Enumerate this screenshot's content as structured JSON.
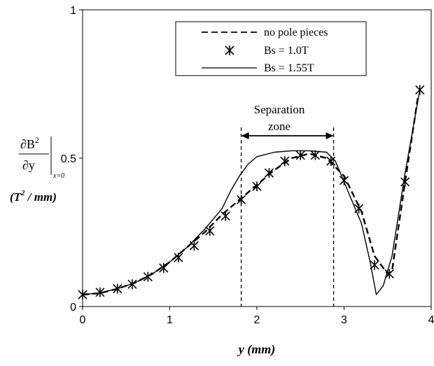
{
  "chart_data": {
    "type": "line",
    "title": "",
    "xlabel": "y (mm)",
    "ylabel": {
      "numerator": "∂B",
      "numerator_exp": "2",
      "denominator": "∂y",
      "subscript": "x=0",
      "unit_prefix": "(T",
      "unit_exp": "2",
      "unit_suffix": " / mm)"
    },
    "xlim": [
      0,
      4
    ],
    "ylim": [
      0,
      1
    ],
    "x_ticks": [
      0,
      1,
      2,
      3,
      4
    ],
    "y_ticks": [
      0,
      0.5,
      1
    ],
    "grid": false,
    "legend_position": "top-center",
    "legend": {
      "no_pole": "no pole pieces",
      "bs1": "Bs = 1.0T",
      "bs155": "Bs = 1.55T"
    },
    "annotation": {
      "line1": "Separation",
      "line2": "zone",
      "x_start": 1.82,
      "x_end": 2.88
    },
    "series": [
      {
        "name": "no pole pieces",
        "style": "dashed",
        "x": [
          0,
          0.2,
          0.4,
          0.6,
          0.8,
          1.0,
          1.2,
          1.4,
          1.6,
          1.8,
          2.0,
          2.2,
          2.4,
          2.6,
          2.8,
          3.0,
          3.2,
          3.35,
          3.5,
          3.55,
          3.7,
          3.85
        ],
        "y": [
          0.04,
          0.045,
          0.06,
          0.08,
          0.11,
          0.15,
          0.2,
          0.25,
          0.31,
          0.36,
          0.41,
          0.46,
          0.5,
          0.515,
          0.5,
          0.44,
          0.32,
          0.17,
          0.11,
          0.12,
          0.42,
          0.71
        ]
      },
      {
        "name": "Bs = 1.0T",
        "style": "markers",
        "x": [
          0,
          0.2,
          0.4,
          0.57,
          0.75,
          0.93,
          1.1,
          1.28,
          1.46,
          1.64,
          1.82,
          2.0,
          2.14,
          2.32,
          2.5,
          2.67,
          2.85,
          3.0,
          3.17,
          3.35,
          3.52,
          3.7,
          3.87
        ],
        "y": [
          0.04,
          0.048,
          0.06,
          0.075,
          0.1,
          0.13,
          0.165,
          0.205,
          0.255,
          0.305,
          0.36,
          0.405,
          0.45,
          0.49,
          0.51,
          0.51,
          0.49,
          0.425,
          0.33,
          0.14,
          0.11,
          0.42,
          0.73
        ]
      },
      {
        "name": "Bs = 1.55T",
        "style": "solid",
        "x": [
          0,
          0.2,
          0.4,
          0.6,
          0.8,
          1.0,
          1.2,
          1.4,
          1.6,
          1.7,
          1.8,
          1.9,
          2.0,
          2.2,
          2.4,
          2.6,
          2.8,
          2.9,
          3.0,
          3.1,
          3.2,
          3.3,
          3.37,
          3.45,
          3.55,
          3.7,
          3.87
        ],
        "y": [
          0.04,
          0.046,
          0.06,
          0.08,
          0.11,
          0.15,
          0.2,
          0.26,
          0.33,
          0.39,
          0.44,
          0.48,
          0.505,
          0.52,
          0.525,
          0.525,
          0.52,
          0.49,
          0.42,
          0.35,
          0.28,
          0.15,
          0.04,
          0.07,
          0.17,
          0.45,
          0.73
        ]
      }
    ]
  }
}
